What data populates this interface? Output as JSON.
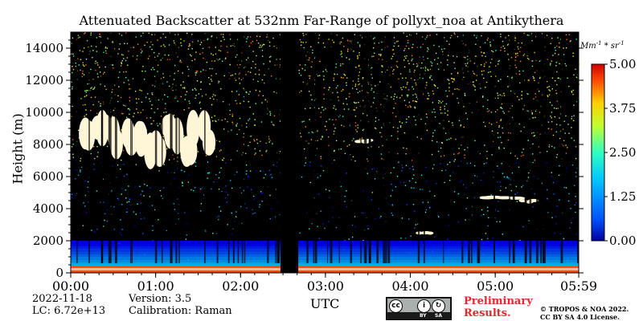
{
  "chart_data": {
    "type": "heatmap",
    "title": "Attenuated Backscatter at 532nm Far-Range of pollyxt_noa at Antikythera",
    "xlabel": "UTC",
    "ylabel": "Height (m)",
    "x_ticks": [
      "00:00",
      "01:00",
      "02:00",
      "03:00",
      "04:00",
      "05:00",
      "05:59"
    ],
    "x_range_hours": [
      0,
      5.983
    ],
    "y_ticks": [
      0,
      2000,
      4000,
      6000,
      8000,
      10000,
      12000,
      14000
    ],
    "ylim": [
      0,
      15000
    ],
    "colorbar": {
      "unit": "Mm^-1 * sr^-1",
      "ticks": [
        "0.00",
        "1.25",
        "2.50",
        "3.75",
        "5.00"
      ],
      "range": [
        0,
        5
      ],
      "colormap": "jet"
    },
    "data_gap_hours": [
      2.47,
      2.68
    ],
    "features": [
      {
        "label": "boundary layer",
        "t_start": 0.0,
        "t_end": 5.98,
        "h_bottom": 0,
        "h_top": 2000,
        "value": 1.5
      },
      {
        "label": "surface layer",
        "t_start": 0.0,
        "t_end": 5.98,
        "h_bottom": 0,
        "h_top": 450,
        "value": 4.0
      },
      {
        "label": "cirrus cloud",
        "t_start": 0.12,
        "t_end": 1.65,
        "h_bottom": 7000,
        "h_top": 9700,
        "value": 5.0
      },
      {
        "label": "cloud",
        "t_start": 3.38,
        "t_end": 3.55,
        "h_bottom": 8100,
        "h_top": 8300,
        "value": 5.0
      },
      {
        "label": "cloud",
        "t_start": 4.85,
        "t_end": 5.25,
        "h_bottom": 4600,
        "h_top": 4750,
        "value": 5.0
      },
      {
        "label": "cloud",
        "t_start": 5.32,
        "t_end": 5.5,
        "h_bottom": 4350,
        "h_top": 4550,
        "value": 5.0
      },
      {
        "label": "cloud",
        "t_start": 4.1,
        "t_end": 4.25,
        "h_bottom": 2450,
        "h_top": 2550,
        "value": 5.0
      }
    ]
  },
  "meta": {
    "date": "2022-11-18",
    "lc": "LC: 6.72e+13",
    "version": "Version: 3.5",
    "calibration": "Calibration: Raman"
  },
  "footer": {
    "prelim_line1": "Preliminary",
    "prelim_line2": "Results.",
    "copyright_line1": "© TROPOS & NOA 2022.",
    "copyright_line2": "CC BY SA 4.0 License.",
    "license_badge": "cc-by-sa-icon",
    "license_labels": [
      "BY",
      "SA"
    ]
  },
  "colors": {
    "background": "#000000",
    "jet_low": "#0000ff",
    "jet_high": "#ff0000",
    "warning": "#e8262b"
  }
}
